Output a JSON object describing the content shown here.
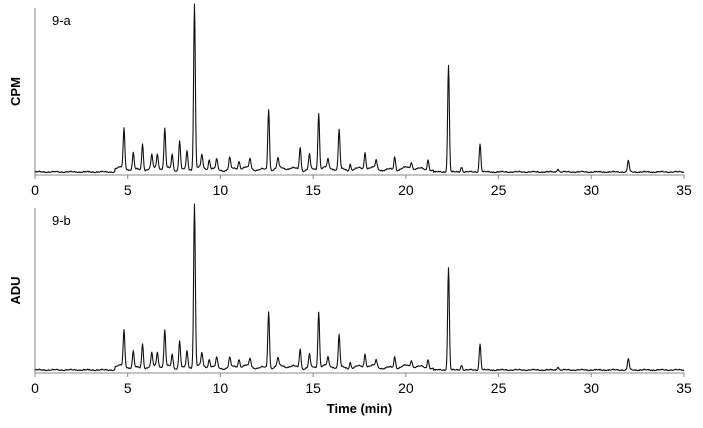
{
  "chart_data": [
    {
      "type": "line",
      "panel_label": "9-a",
      "ylabel": "CPM",
      "xlabel": "",
      "xlim": [
        0,
        35
      ],
      "x_ticks": [
        0,
        5,
        10,
        15,
        20,
        25,
        30,
        35
      ],
      "y_scale": "arbitrary (no ticks shown)",
      "grid": false,
      "line_color": "#111111",
      "baseline_level": 0.03,
      "peaks": [
        {
          "rt": 4.8,
          "height": 0.24
        },
        {
          "rt": 5.3,
          "height": 0.1
        },
        {
          "rt": 5.8,
          "height": 0.16
        },
        {
          "rt": 6.3,
          "height": 0.08
        },
        {
          "rt": 6.6,
          "height": 0.09
        },
        {
          "rt": 7.0,
          "height": 0.24
        },
        {
          "rt": 7.4,
          "height": 0.09
        },
        {
          "rt": 7.8,
          "height": 0.18
        },
        {
          "rt": 8.2,
          "height": 0.11
        },
        {
          "rt": 8.6,
          "height": 1.0
        },
        {
          "rt": 9.0,
          "height": 0.08
        },
        {
          "rt": 9.4,
          "height": 0.06
        },
        {
          "rt": 9.8,
          "height": 0.06
        },
        {
          "rt": 10.5,
          "height": 0.07
        },
        {
          "rt": 11.0,
          "height": 0.05
        },
        {
          "rt": 11.6,
          "height": 0.06
        },
        {
          "rt": 12.6,
          "height": 0.37
        },
        {
          "rt": 13.1,
          "height": 0.06
        },
        {
          "rt": 14.3,
          "height": 0.14
        },
        {
          "rt": 14.8,
          "height": 0.09
        },
        {
          "rt": 15.3,
          "height": 0.34
        },
        {
          "rt": 15.8,
          "height": 0.05
        },
        {
          "rt": 16.4,
          "height": 0.24
        },
        {
          "rt": 17.0,
          "height": 0.04
        },
        {
          "rt": 17.8,
          "height": 0.1
        },
        {
          "rt": 18.4,
          "height": 0.05
        },
        {
          "rt": 19.4,
          "height": 0.08
        },
        {
          "rt": 20.3,
          "height": 0.04
        },
        {
          "rt": 21.2,
          "height": 0.07
        },
        {
          "rt": 22.3,
          "height": 0.65
        },
        {
          "rt": 23.0,
          "height": 0.03
        },
        {
          "rt": 24.0,
          "height": 0.17
        },
        {
          "rt": 28.2,
          "height": 0.02
        },
        {
          "rt": 32.0,
          "height": 0.07
        }
      ]
    },
    {
      "type": "line",
      "panel_label": "9-b",
      "ylabel": "ADU",
      "xlabel": "Time (min)",
      "xlim": [
        0,
        35
      ],
      "x_ticks": [
        0,
        5,
        10,
        15,
        20,
        25,
        30,
        35
      ],
      "y_scale": "arbitrary (no ticks shown)",
      "grid": false,
      "line_color": "#111111",
      "baseline_level": 0.03,
      "peaks": [
        {
          "rt": 4.8,
          "height": 0.22
        },
        {
          "rt": 5.3,
          "height": 0.1
        },
        {
          "rt": 5.8,
          "height": 0.15
        },
        {
          "rt": 6.3,
          "height": 0.08
        },
        {
          "rt": 6.6,
          "height": 0.09
        },
        {
          "rt": 7.0,
          "height": 0.22
        },
        {
          "rt": 7.4,
          "height": 0.08
        },
        {
          "rt": 7.8,
          "height": 0.17
        },
        {
          "rt": 8.2,
          "height": 0.1
        },
        {
          "rt": 8.6,
          "height": 1.0
        },
        {
          "rt": 9.0,
          "height": 0.08
        },
        {
          "rt": 9.4,
          "height": 0.05
        },
        {
          "rt": 9.8,
          "height": 0.06
        },
        {
          "rt": 10.5,
          "height": 0.06
        },
        {
          "rt": 11.0,
          "height": 0.05
        },
        {
          "rt": 11.6,
          "height": 0.05
        },
        {
          "rt": 12.6,
          "height": 0.35
        },
        {
          "rt": 13.1,
          "height": 0.05
        },
        {
          "rt": 14.3,
          "height": 0.12
        },
        {
          "rt": 14.8,
          "height": 0.08
        },
        {
          "rt": 15.3,
          "height": 0.34
        },
        {
          "rt": 15.8,
          "height": 0.05
        },
        {
          "rt": 16.4,
          "height": 0.2
        },
        {
          "rt": 17.0,
          "height": 0.04
        },
        {
          "rt": 17.8,
          "height": 0.08
        },
        {
          "rt": 18.4,
          "height": 0.04
        },
        {
          "rt": 19.4,
          "height": 0.07
        },
        {
          "rt": 20.3,
          "height": 0.04
        },
        {
          "rt": 21.2,
          "height": 0.06
        },
        {
          "rt": 22.3,
          "height": 0.63
        },
        {
          "rt": 23.0,
          "height": 0.03
        },
        {
          "rt": 24.0,
          "height": 0.16
        },
        {
          "rt": 28.2,
          "height": 0.02
        },
        {
          "rt": 32.0,
          "height": 0.07
        }
      ]
    }
  ]
}
